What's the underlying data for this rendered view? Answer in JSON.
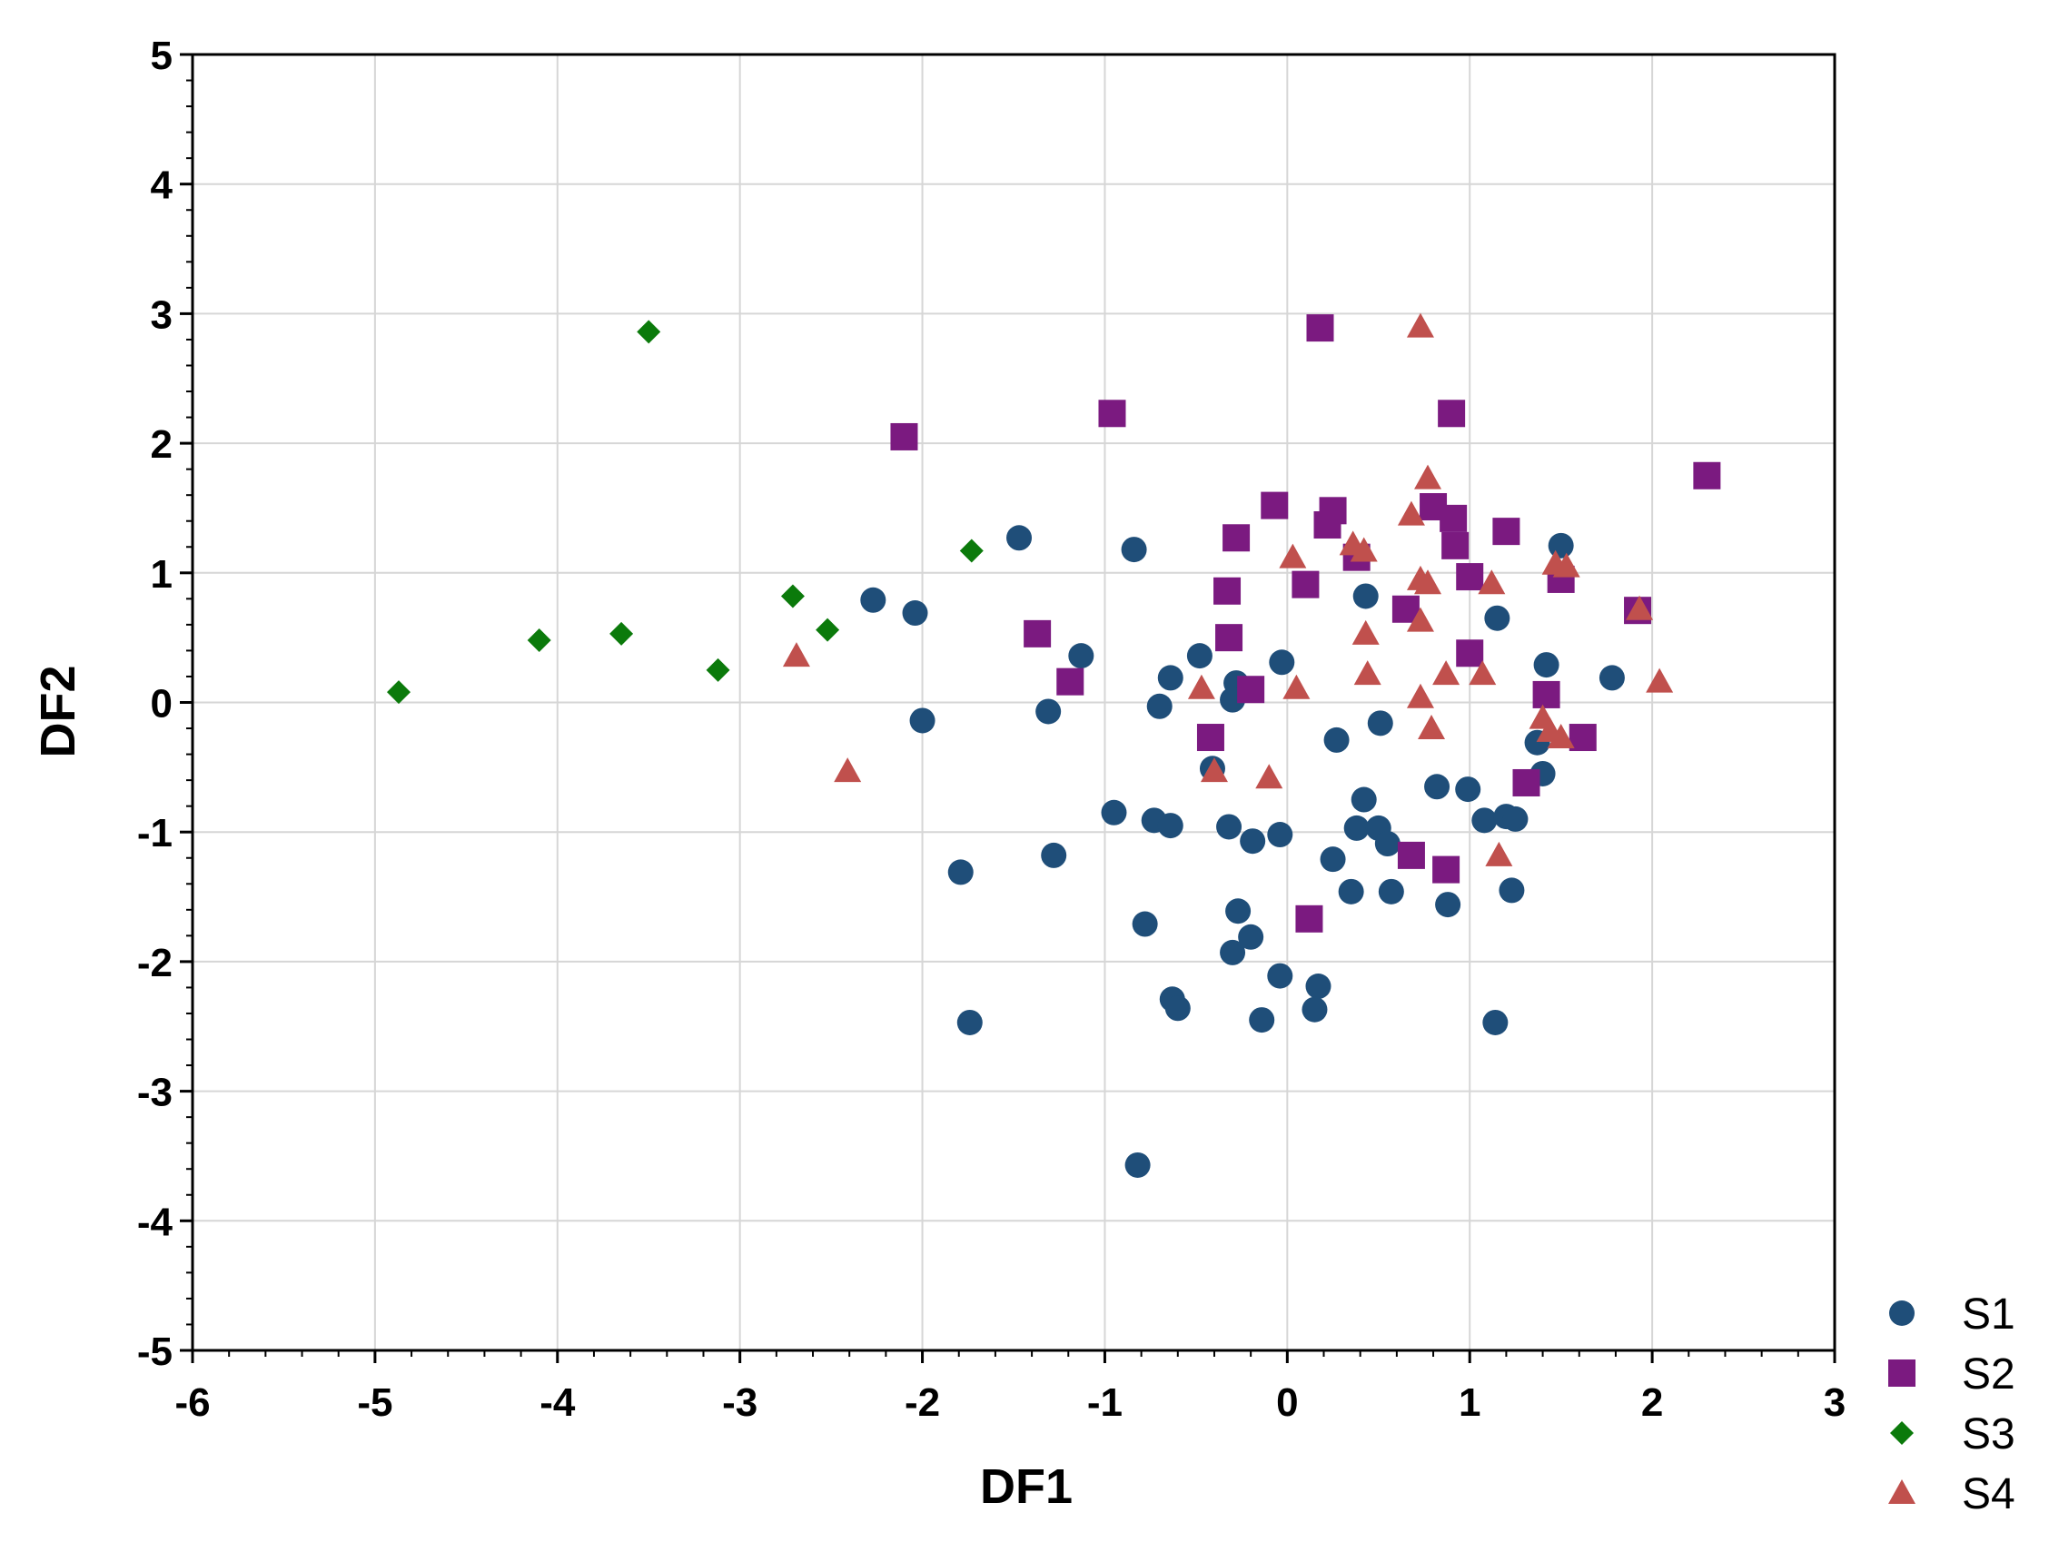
{
  "chart_data": {
    "type": "scatter",
    "xlabel": "DF1",
    "ylabel": "DF2",
    "xlim": [
      -6,
      3
    ],
    "ylim": [
      -5,
      5
    ],
    "xticks": [
      -6,
      -5,
      -4,
      -3,
      -2,
      -1,
      0,
      1,
      2,
      3
    ],
    "yticks": [
      -5,
      -4,
      -3,
      -2,
      -1,
      0,
      1,
      2,
      3,
      4,
      5
    ],
    "xtick_labels": [
      "-6",
      "-5",
      "-4",
      "-3",
      "-2",
      "-1",
      "0",
      "1",
      "2",
      "3"
    ],
    "ytick_labels": [
      "-5",
      "-4",
      "-3",
      "-2",
      "-1",
      "0",
      "1",
      "2",
      "3",
      "4",
      "5"
    ],
    "grid": true,
    "legend_position": "bottom-right, outside plot",
    "series": [
      {
        "name": "S1",
        "marker": "circle",
        "color": "#1F4E79",
        "points": [
          [
            -1.47,
            1.27
          ],
          [
            -0.84,
            1.18
          ],
          [
            -2.27,
            0.79
          ],
          [
            -2.04,
            0.69
          ],
          [
            -1.13,
            0.36
          ],
          [
            -1.31,
            -0.07
          ],
          [
            -2.0,
            -0.14
          ],
          [
            -0.64,
            0.19
          ],
          [
            -0.7,
            -0.03
          ],
          [
            -0.48,
            0.36
          ],
          [
            -0.28,
            0.15
          ],
          [
            -0.3,
            0.02
          ],
          [
            -0.03,
            0.31
          ],
          [
            0.43,
            0.82
          ],
          [
            0.51,
            -0.16
          ],
          [
            0.27,
            -0.29
          ],
          [
            -0.41,
            -0.51
          ],
          [
            1.15,
            0.65
          ],
          [
            1.42,
            0.29
          ],
          [
            1.5,
            1.21
          ],
          [
            1.78,
            0.19
          ],
          [
            1.37,
            -0.31
          ],
          [
            1.4,
            -0.55
          ],
          [
            0.82,
            -0.65
          ],
          [
            0.99,
            -0.67
          ],
          [
            -0.95,
            -0.85
          ],
          [
            -0.73,
            -0.91
          ],
          [
            -0.64,
            -0.95
          ],
          [
            -0.32,
            -0.96
          ],
          [
            -0.19,
            -1.07
          ],
          [
            -0.04,
            -1.02
          ],
          [
            0.42,
            -0.75
          ],
          [
            0.38,
            -0.97
          ],
          [
            0.5,
            -0.97
          ],
          [
            0.55,
            -1.09
          ],
          [
            1.08,
            -0.91
          ],
          [
            1.2,
            -0.88
          ],
          [
            1.25,
            -0.9
          ],
          [
            -1.79,
            -1.31
          ],
          [
            -1.28,
            -1.18
          ],
          [
            -0.78,
            -1.71
          ],
          [
            -0.27,
            -1.61
          ],
          [
            -0.2,
            -1.81
          ],
          [
            -0.3,
            -1.93
          ],
          [
            0.25,
            -1.21
          ],
          [
            0.35,
            -1.46
          ],
          [
            0.57,
            -1.46
          ],
          [
            0.88,
            -1.56
          ],
          [
            1.23,
            -1.45
          ],
          [
            -0.04,
            -2.11
          ],
          [
            0.17,
            -2.19
          ],
          [
            0.15,
            -2.37
          ],
          [
            -0.63,
            -2.29
          ],
          [
            -0.6,
            -2.36
          ],
          [
            -0.14,
            -2.45
          ],
          [
            -1.74,
            -2.47
          ],
          [
            1.14,
            -2.47
          ],
          [
            -0.82,
            -3.57
          ]
        ]
      },
      {
        "name": "S2",
        "marker": "square",
        "color": "#7B1A80",
        "points": [
          [
            0.18,
            2.89
          ],
          [
            -2.1,
            2.05
          ],
          [
            -0.96,
            2.23
          ],
          [
            0.9,
            2.23
          ],
          [
            2.3,
            1.75
          ],
          [
            -0.07,
            1.52
          ],
          [
            0.25,
            1.48
          ],
          [
            0.22,
            1.37
          ],
          [
            -0.28,
            1.27
          ],
          [
            0.1,
            0.91
          ],
          [
            0.8,
            1.51
          ],
          [
            0.91,
            1.42
          ],
          [
            0.92,
            1.21
          ],
          [
            1.2,
            1.32
          ],
          [
            0.38,
            1.12
          ],
          [
            -0.33,
            0.86
          ],
          [
            -0.32,
            0.5
          ],
          [
            0.65,
            0.72
          ],
          [
            1.0,
            0.97
          ],
          [
            1.0,
            0.38
          ],
          [
            1.5,
            0.95
          ],
          [
            1.92,
            0.71
          ],
          [
            -1.37,
            0.53
          ],
          [
            -1.19,
            0.16
          ],
          [
            -0.2,
            0.1
          ],
          [
            1.42,
            0.06
          ],
          [
            -0.42,
            -0.27
          ],
          [
            1.62,
            -0.27
          ],
          [
            1.31,
            -0.62
          ],
          [
            0.68,
            -1.18
          ],
          [
            0.87,
            -1.29
          ],
          [
            0.12,
            -1.67
          ]
        ]
      },
      {
        "name": "S3",
        "marker": "diamond",
        "color": "#0B7A0B",
        "points": [
          [
            -3.5,
            2.86
          ],
          [
            -1.73,
            1.17
          ],
          [
            -2.71,
            0.82
          ],
          [
            -2.52,
            0.56
          ],
          [
            -3.65,
            0.53
          ],
          [
            -4.1,
            0.48
          ],
          [
            -3.12,
            0.25
          ],
          [
            -4.87,
            0.08
          ]
        ]
      },
      {
        "name": "S4",
        "marker": "triangle",
        "color": "#C0504D",
        "points": [
          [
            0.73,
            2.9
          ],
          [
            0.77,
            1.73
          ],
          [
            0.68,
            1.45
          ],
          [
            0.36,
            1.22
          ],
          [
            0.42,
            1.17
          ],
          [
            0.03,
            1.12
          ],
          [
            0.73,
            0.95
          ],
          [
            0.77,
            0.92
          ],
          [
            1.12,
            0.92
          ],
          [
            1.47,
            1.07
          ],
          [
            1.53,
            1.05
          ],
          [
            1.93,
            0.72
          ],
          [
            0.43,
            0.53
          ],
          [
            0.73,
            0.63
          ],
          [
            0.44,
            0.22
          ],
          [
            0.87,
            0.22
          ],
          [
            1.07,
            0.22
          ],
          [
            0.05,
            0.11
          ],
          [
            -0.47,
            0.11
          ],
          [
            0.73,
            0.04
          ],
          [
            2.04,
            0.16
          ],
          [
            -2.69,
            0.36
          ],
          [
            0.79,
            -0.2
          ],
          [
            1.4,
            -0.12
          ],
          [
            1.44,
            -0.22
          ],
          [
            1.5,
            -0.27
          ],
          [
            -2.41,
            -0.53
          ],
          [
            -0.4,
            -0.53
          ],
          [
            -0.1,
            -0.58
          ],
          [
            1.16,
            -1.18
          ]
        ]
      }
    ]
  }
}
